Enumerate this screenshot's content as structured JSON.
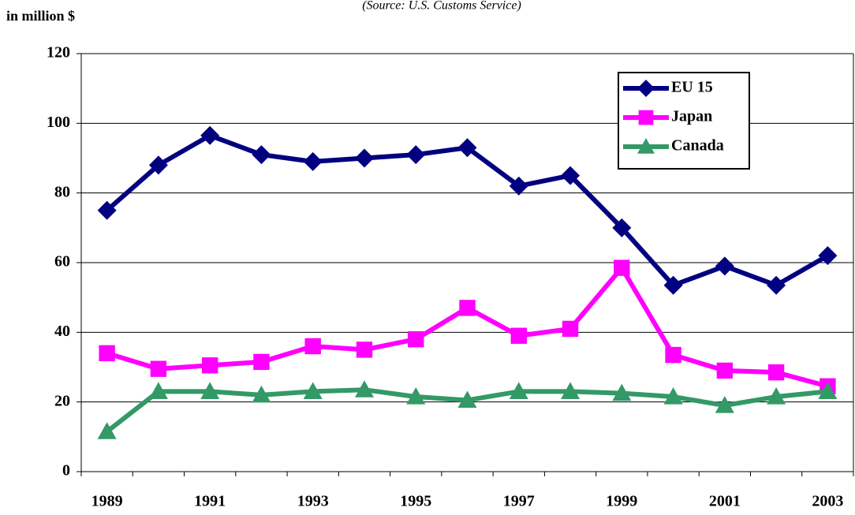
{
  "chart_data": {
    "type": "line",
    "subtitle": "(Source: U.S. Customs Service)",
    "y_label": "in million $",
    "categories": [
      "1989",
      null,
      "1991",
      null,
      "1993",
      null,
      "1995",
      null,
      "1997",
      null,
      "1999",
      null,
      "2001",
      null,
      "2003"
    ],
    "series": [
      {
        "name": "EU 15",
        "color": "#000080",
        "marker": "diamond",
        "values": [
          75,
          88,
          96.5,
          91,
          89,
          90,
          91,
          93,
          82,
          85,
          70,
          53.5,
          59,
          53.5,
          62
        ]
      },
      {
        "name": "Japan",
        "color": "#ff00ff",
        "marker": "square",
        "values": [
          34,
          29.5,
          30.5,
          31.5,
          36,
          35,
          38,
          47,
          39,
          41,
          58.5,
          33.5,
          29,
          28.5,
          24.5
        ]
      },
      {
        "name": "Canada",
        "color": "#339966",
        "marker": "triangle",
        "values": [
          11.5,
          23,
          23,
          22,
          23,
          23.5,
          21.5,
          20.5,
          23,
          23,
          22.5,
          21.5,
          19,
          21.5,
          23
        ]
      }
    ],
    "ylim": [
      0,
      120
    ],
    "yticks": [
      0,
      20,
      40,
      60,
      80,
      100,
      120
    ],
    "grid": true
  }
}
